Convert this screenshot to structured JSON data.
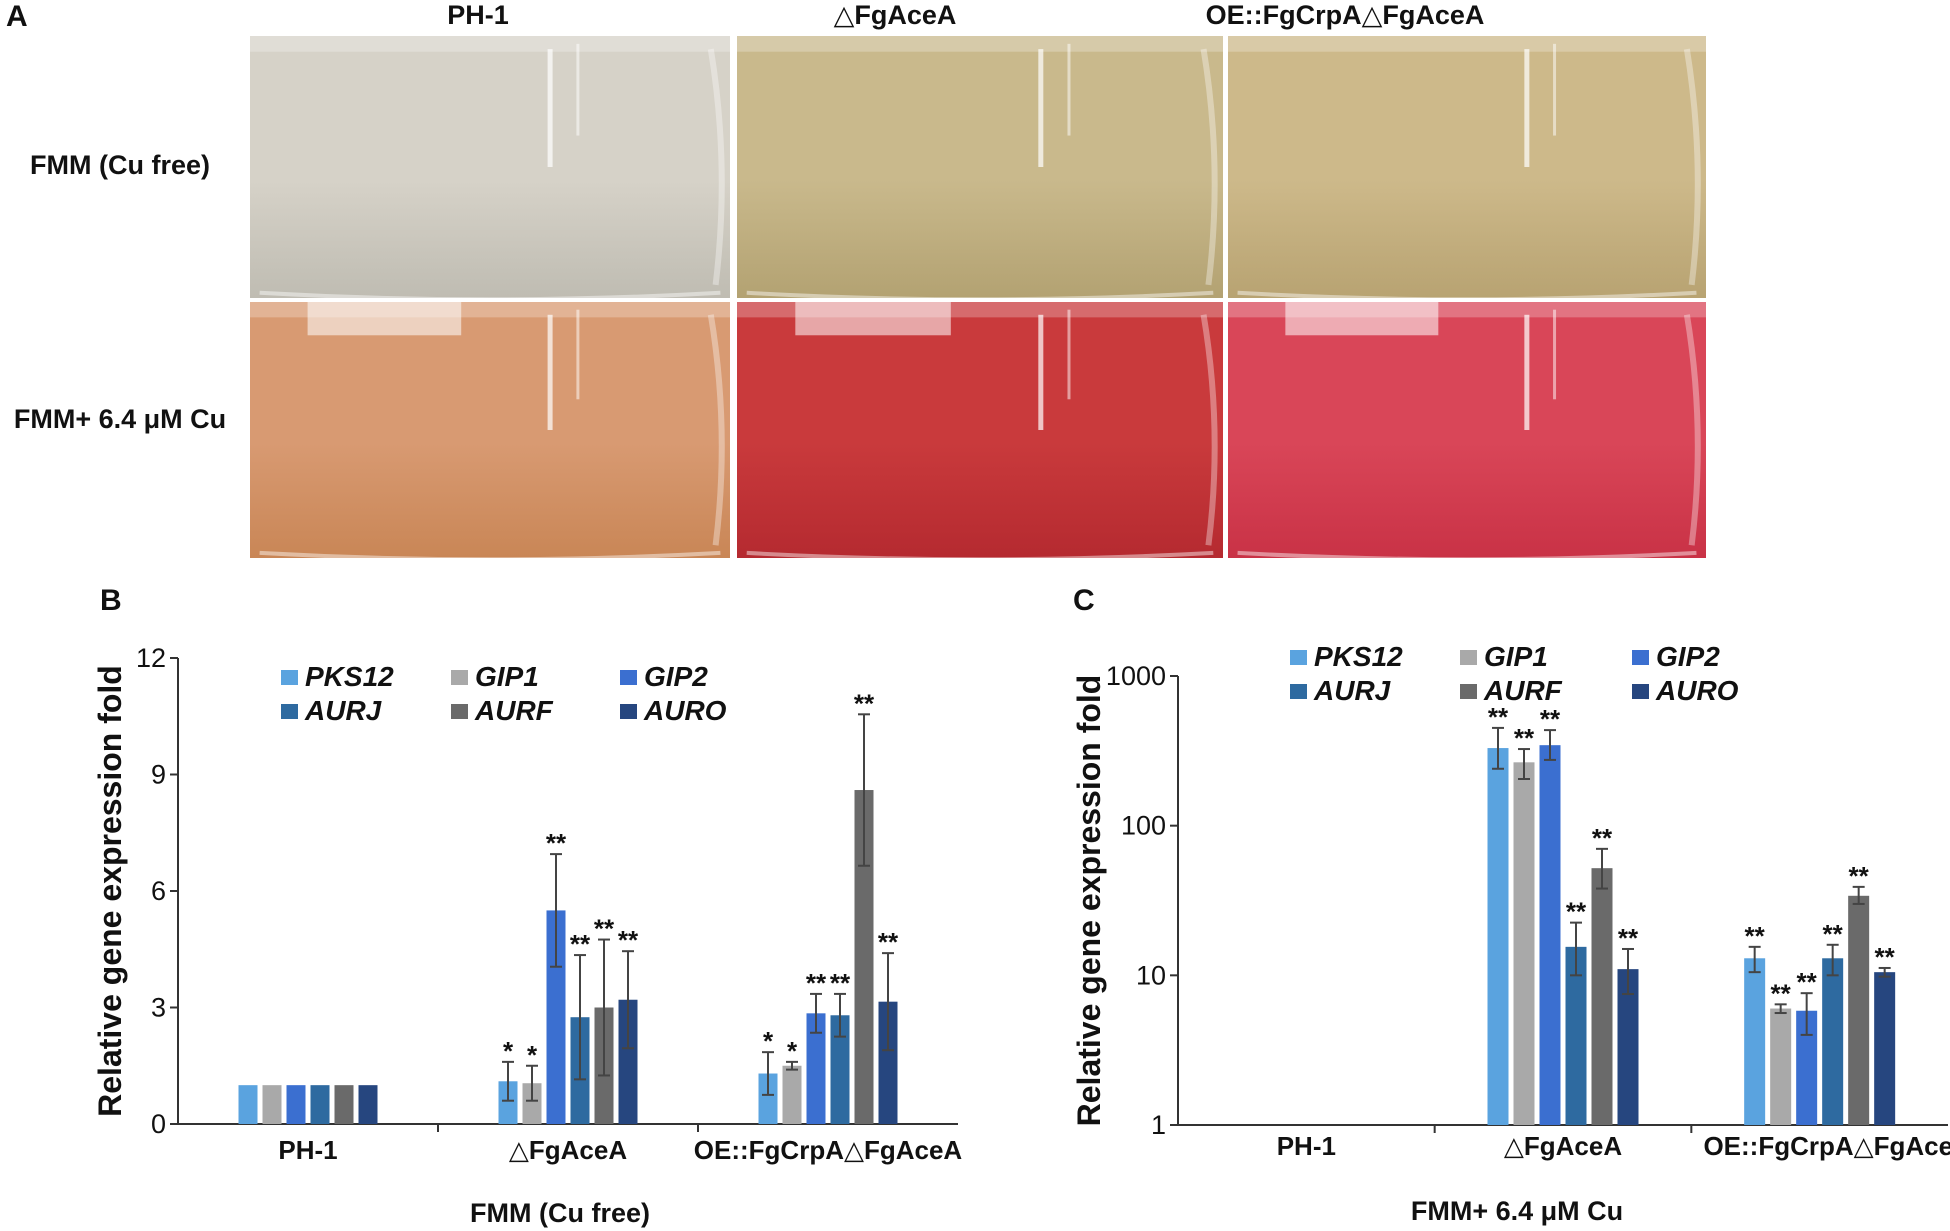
{
  "panel_a": {
    "letter": "A",
    "columns": [
      "PH-1",
      "△FgAceA",
      "OE::FgCrpA△FgAceA"
    ],
    "rows": [
      "FMM (Cu free)",
      "FMM+ 6.4 μM Cu"
    ],
    "photo_colors": [
      [
        "#d6d2c8",
        "#c9b98c",
        "#cdb98a"
      ],
      [
        "#d89a72",
        "#c93a3c",
        "#d94658"
      ]
    ],
    "photo_tints": [
      [
        "#bfbcb2",
        "#b3a272",
        "#b8a372"
      ],
      [
        "#c98656",
        "#b52a30",
        "#c93246"
      ]
    ]
  },
  "colors": {
    "PKS12": "#5aa3df",
    "GIP1": "#a9a9a9",
    "GIP2": "#3b6fd0",
    "AURJ": "#2e6aa0",
    "AURF": "#6a6a6a",
    "AURO": "#26467f"
  },
  "chart_data": [
    {
      "panel": "B",
      "type": "bar",
      "categories": [
        "PH-1",
        "△FgAceA",
        "OE::FgCrpA△FgAceA"
      ],
      "condition": "FMM (Cu free)",
      "ylabel": "Relative gene expression fold",
      "xlabel": "",
      "ylim": [
        0,
        12
      ],
      "yticks": [
        "0",
        "3",
        "6",
        "9",
        "12"
      ],
      "ytick_values": [
        0,
        3,
        6,
        9,
        12
      ],
      "log": false,
      "legend": [
        [
          "PKS12",
          "GIP1",
          "GIP2"
        ],
        [
          "AURJ",
          "AURF",
          "AURO"
        ]
      ],
      "series": [
        {
          "name": "PKS12",
          "values": [
            1.0,
            1.1,
            1.3
          ],
          "errors": [
            0.03,
            0.5,
            0.55
          ],
          "stars": [
            "",
            "*",
            "*"
          ]
        },
        {
          "name": "GIP1",
          "values": [
            1.0,
            1.05,
            1.5
          ],
          "errors": [
            0.03,
            0.45,
            0.1
          ],
          "stars": [
            "",
            "*",
            "*"
          ]
        },
        {
          "name": "GIP2",
          "values": [
            1.0,
            5.5,
            2.85
          ],
          "errors": [
            0.03,
            1.45,
            0.5
          ],
          "stars": [
            "",
            "**",
            "**"
          ]
        },
        {
          "name": "AURJ",
          "values": [
            1.0,
            2.75,
            2.8
          ],
          "errors": [
            0.03,
            1.6,
            0.55
          ],
          "stars": [
            "",
            "**",
            "**"
          ]
        },
        {
          "name": "AURF",
          "values": [
            1.0,
            3.0,
            8.6
          ],
          "errors": [
            0.03,
            1.75,
            1.95
          ],
          "stars": [
            "",
            "**",
            "**"
          ]
        },
        {
          "name": "AURO",
          "values": [
            1.0,
            3.2,
            3.15
          ],
          "errors": [
            0.03,
            1.25,
            1.25
          ],
          "stars": [
            "",
            "**",
            "**"
          ]
        }
      ]
    },
    {
      "panel": "C",
      "type": "bar",
      "categories": [
        "PH-1",
        "△FgAceA",
        "OE::FgCrpA△FgAceA"
      ],
      "condition": "FMM+ 6.4 μM Cu",
      "ylabel": "Relative gene expression fold",
      "xlabel": "",
      "ylim": [
        1,
        1000
      ],
      "yticks": [
        "1",
        "10",
        "100",
        "1000"
      ],
      "ytick_values": [
        1,
        10,
        100,
        1000
      ],
      "log": true,
      "legend": [
        [
          "PKS12",
          "GIP1",
          "GIP2"
        ],
        [
          "AURJ",
          "AURF",
          "AURO"
        ]
      ],
      "series": [
        {
          "name": "PKS12",
          "values": [
            1.0,
            330,
            13
          ],
          "errors_low": [
            0,
            90,
            2.5
          ],
          "errors_high": [
            0,
            120,
            2.5
          ],
          "stars": [
            "",
            "**",
            "**"
          ]
        },
        {
          "name": "GIP1",
          "values": [
            1.0,
            265,
            6.0
          ],
          "errors_low": [
            0,
            60,
            0.4
          ],
          "errors_high": [
            0,
            60,
            0.4
          ],
          "stars": [
            "",
            "**",
            "**"
          ]
        },
        {
          "name": "GIP2",
          "values": [
            1.0,
            345,
            5.8
          ],
          "errors_low": [
            0,
            70,
            1.8
          ],
          "errors_high": [
            0,
            90,
            1.8
          ],
          "stars": [
            "",
            "**",
            "**"
          ]
        },
        {
          "name": "AURJ",
          "values": [
            1.0,
            15.5,
            13
          ],
          "errors_low": [
            0,
            5.5,
            3
          ],
          "errors_high": [
            0,
            7,
            3
          ],
          "stars": [
            "",
            "**",
            "**"
          ]
        },
        {
          "name": "AURF",
          "values": [
            1.0,
            52,
            34
          ],
          "errors_low": [
            0,
            14,
            4
          ],
          "errors_high": [
            0,
            18,
            5
          ],
          "stars": [
            "",
            "**",
            "**"
          ]
        },
        {
          "name": "AURO",
          "values": [
            1.0,
            11,
            10.5
          ],
          "errors_low": [
            0,
            3.5,
            0.7
          ],
          "errors_high": [
            0,
            4,
            0.7
          ],
          "stars": [
            "",
            "**",
            "**"
          ]
        }
      ]
    }
  ]
}
